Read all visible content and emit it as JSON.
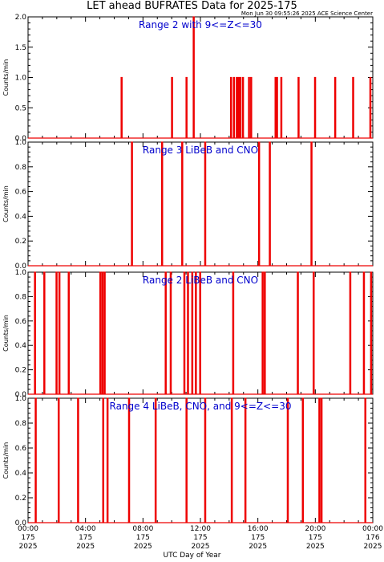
{
  "header": {
    "title": "LET ahead BUFRATES Data for 2025-175",
    "timestamp": "Mon Jun 30 09:55:26 2025 ACE Science Center"
  },
  "xaxis": {
    "title": "UTC Day of Year",
    "ticks": [
      {
        "time": "00:00",
        "doy": "175",
        "year": "2025"
      },
      {
        "time": "04:00",
        "doy": "175",
        "year": "2025"
      },
      {
        "time": "08:00",
        "doy": "175",
        "year": "2025"
      },
      {
        "time": "12:00",
        "doy": "175",
        "year": "2025"
      },
      {
        "time": "16:00",
        "doy": "175",
        "year": "2025"
      },
      {
        "time": "20:00",
        "doy": "175",
        "year": "2025"
      },
      {
        "time": "00:00",
        "doy": "176",
        "year": "2025"
      }
    ]
  },
  "colors": {
    "data": "#ee0000",
    "label": "#0000cc",
    "axis": "#000000"
  },
  "chart_data": [
    {
      "type": "line",
      "title": "Range 2 with 9<=Z<=30",
      "ylabel": "Counts/min",
      "xlabel": "UTC Day of Year",
      "xlim": [
        0,
        24
      ],
      "ylim": [
        0,
        2.0
      ],
      "yticks": [
        "0.0",
        "0.5",
        "1.0",
        "1.5",
        "2.0"
      ],
      "x_units": "hours UTC, day 175",
      "events": [
        {
          "x": 6.48,
          "y": 1
        },
        {
          "x": 9.99,
          "y": 1
        },
        {
          "x": 11.0,
          "y": 1
        },
        {
          "x": 11.5,
          "y": 2
        },
        {
          "x": 14.1,
          "y": 1
        },
        {
          "x": 14.3,
          "y": 1
        },
        {
          "x": 14.5,
          "y": 1
        },
        {
          "x": 14.62,
          "y": 1
        },
        {
          "x": 14.75,
          "y": 1
        },
        {
          "x": 14.93,
          "y": 1
        },
        {
          "x": 15.35,
          "y": 1
        },
        {
          "x": 15.5,
          "y": 1
        },
        {
          "x": 17.2,
          "y": 1
        },
        {
          "x": 17.3,
          "y": 1
        },
        {
          "x": 17.6,
          "y": 1
        },
        {
          "x": 18.8,
          "y": 1
        },
        {
          "x": 19.95,
          "y": 1
        },
        {
          "x": 21.35,
          "y": 1
        },
        {
          "x": 22.6,
          "y": 1
        },
        {
          "x": 23.8,
          "y": 1
        }
      ]
    },
    {
      "type": "line",
      "title": "Range 3 LiBeB and CNO",
      "ylabel": "Counts/min",
      "xlabel": "UTC Day of Year",
      "xlim": [
        0,
        24
      ],
      "ylim": [
        0,
        1.0
      ],
      "yticks": [
        "0.0",
        "0.2",
        "0.4",
        "0.6",
        "0.8",
        "1.0"
      ],
      "x_units": "hours UTC, day 175",
      "events": [
        {
          "x": 7.2,
          "y": 1
        },
        {
          "x": 9.3,
          "y": 1
        },
        {
          "x": 10.7,
          "y": 1
        },
        {
          "x": 12.3,
          "y": 1
        },
        {
          "x": 16.05,
          "y": 1
        },
        {
          "x": 16.8,
          "y": 1
        },
        {
          "x": 19.7,
          "y": 1
        }
      ]
    },
    {
      "type": "line",
      "title": "Range 2 LiBeB and CNO",
      "ylabel": "Counts/min",
      "xlabel": "UTC Day of Year",
      "xlim": [
        0,
        24
      ],
      "ylim": [
        0,
        1.0
      ],
      "yticks": [
        "0.0",
        "0.2",
        "0.4",
        "0.6",
        "0.8",
        "1.0"
      ],
      "x_units": "hours UTC, day 175",
      "events": [
        {
          "x": 0.45,
          "y": 1
        },
        {
          "x": 1.1,
          "y": 1
        },
        {
          "x": 1.95,
          "y": 1
        },
        {
          "x": 2.15,
          "y": 1
        },
        {
          "x": 2.8,
          "y": 1
        },
        {
          "x": 5.0,
          "y": 1
        },
        {
          "x": 5.15,
          "y": 1
        },
        {
          "x": 5.3,
          "y": 1
        },
        {
          "x": 9.55,
          "y": 1
        },
        {
          "x": 9.9,
          "y": 1
        },
        {
          "x": 10.85,
          "y": 1
        },
        {
          "x": 11.1,
          "y": 1
        },
        {
          "x": 11.4,
          "y": 1
        },
        {
          "x": 11.65,
          "y": 1
        },
        {
          "x": 11.95,
          "y": 1
        },
        {
          "x": 14.25,
          "y": 1
        },
        {
          "x": 16.3,
          "y": 1
        },
        {
          "x": 16.45,
          "y": 1
        },
        {
          "x": 18.75,
          "y": 1
        },
        {
          "x": 19.85,
          "y": 1
        },
        {
          "x": 22.4,
          "y": 1
        },
        {
          "x": 23.35,
          "y": 1
        },
        {
          "x": 23.85,
          "y": 1
        }
      ]
    },
    {
      "type": "line",
      "title": "Range 4 LiBeB, CNO, and 9<=Z<=30",
      "ylabel": "Counts/min",
      "xlabel": "UTC Day of Year",
      "xlim": [
        0,
        24
      ],
      "ylim": [
        0,
        1.0
      ],
      "yticks": [
        "0.0",
        "0.2",
        "0.4",
        "0.6",
        "0.8",
        "1.0"
      ],
      "x_units": "hours UTC, day 175",
      "events": [
        {
          "x": 0.5,
          "y": 1
        },
        {
          "x": 2.1,
          "y": 1
        },
        {
          "x": 3.45,
          "y": 1
        },
        {
          "x": 5.2,
          "y": 1
        },
        {
          "x": 5.5,
          "y": 1
        },
        {
          "x": 7.0,
          "y": 1
        },
        {
          "x": 8.85,
          "y": 1
        },
        {
          "x": 11.0,
          "y": 1
        },
        {
          "x": 12.3,
          "y": 1
        },
        {
          "x": 14.15,
          "y": 1
        },
        {
          "x": 15.1,
          "y": 1
        },
        {
          "x": 18.05,
          "y": 1
        },
        {
          "x": 19.1,
          "y": 1
        },
        {
          "x": 20.25,
          "y": 1
        },
        {
          "x": 20.4,
          "y": 1
        },
        {
          "x": 23.45,
          "y": 1
        }
      ]
    }
  ]
}
